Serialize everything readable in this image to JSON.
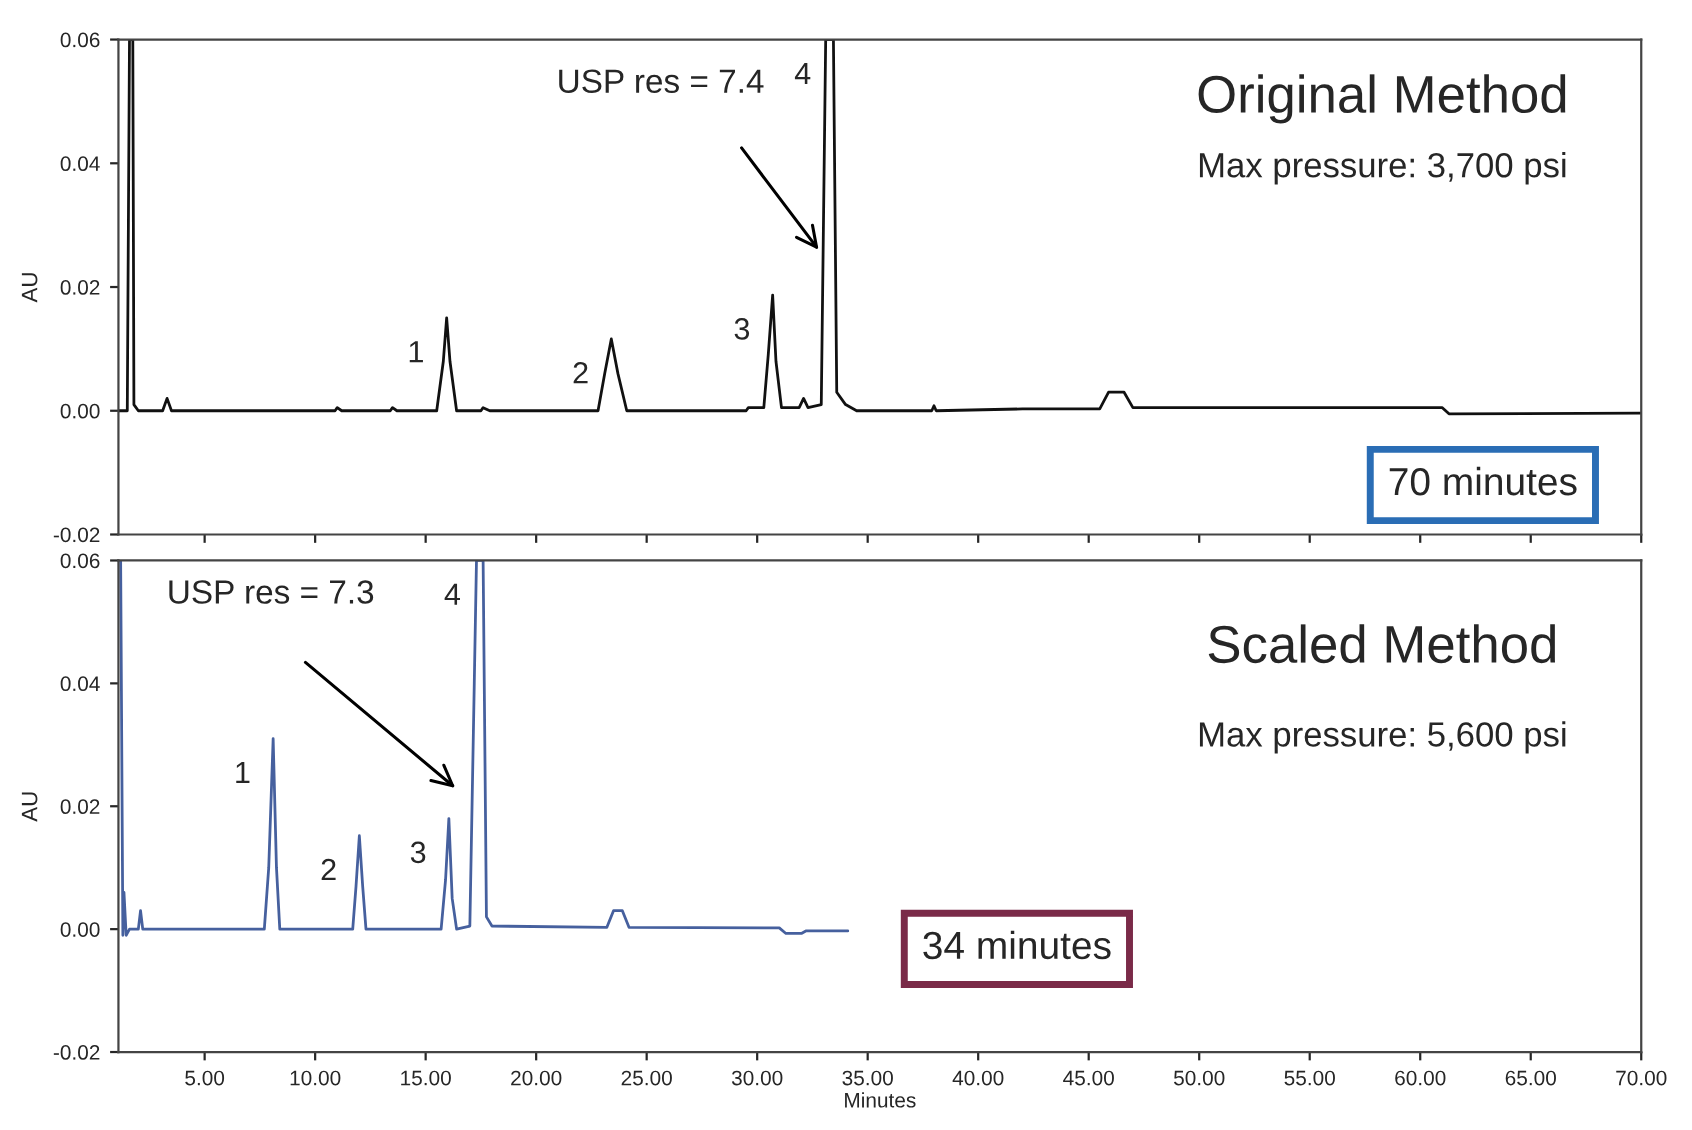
{
  "chart_data": [
    {
      "type": "line",
      "title": "Original Method",
      "subtitle": "Max pressure: 3,700 psi",
      "ylabel": "AU",
      "tick_labels": "y",
      "grid": false,
      "marker": "none",
      "line_style": "solid",
      "xlim": [
        1.1,
        70
      ],
      "ylim": [
        -0.02,
        0.06
      ],
      "xticks": [
        {
          "value": 5,
          "label": null
        },
        {
          "value": 10,
          "label": null
        },
        {
          "value": 15,
          "label": null
        },
        {
          "value": 20,
          "label": null
        },
        {
          "value": 25,
          "label": null
        },
        {
          "value": 30,
          "label": null
        },
        {
          "value": 35,
          "label": null
        },
        {
          "value": 40,
          "label": null
        },
        {
          "value": 45,
          "label": null
        },
        {
          "value": 50,
          "label": null
        },
        {
          "value": 55,
          "label": null
        },
        {
          "value": 60,
          "label": null
        },
        {
          "value": 65,
          "label": null
        },
        {
          "value": 70,
          "label": null
        }
      ],
      "yticks": [
        {
          "value": -0.02,
          "label": "-0.02"
        },
        {
          "value": 0,
          "label": "0.00"
        },
        {
          "value": 0.02,
          "label": "0.02"
        },
        {
          "value": 0.04,
          "label": "0.04"
        },
        {
          "value": 0.06,
          "label": "0.06"
        }
      ],
      "series": [
        {
          "color": "#111111",
          "x": [
            1.1,
            1.5,
            1.6,
            1.75,
            1.8,
            2.0,
            3.1,
            3.3,
            3.5,
            10.9,
            11.0,
            11.2,
            13.4,
            13.5,
            13.7,
            15.5,
            15.8,
            15.95,
            16.1,
            16.4,
            17.5,
            17.6,
            17.9,
            22.8,
            23.1,
            23.4,
            23.7,
            24.1,
            29.5,
            29.6,
            30.3,
            30.5,
            30.7,
            30.85,
            31.1,
            31.9,
            32.1,
            32.3,
            32.9,
            33.1,
            33.45,
            33.6,
            34.0,
            34.5,
            37.9,
            38.0,
            38.1,
            42.0,
            44.0,
            45.5,
            45.9,
            46.6,
            47.0,
            52.0,
            56.0,
            61.0,
            61.3,
            70.0
          ],
          "values": [
            0.0,
            0.0,
            0.06,
            0.06,
            0.001,
            0.0,
            0.0,
            0.002,
            0.0,
            0.0,
            0.0005,
            0.0,
            0.0,
            0.0005,
            0.0,
            0.0,
            0.008,
            0.015,
            0.008,
            0.0,
            0.0,
            0.0005,
            0.0,
            0.0,
            0.006,
            0.0116,
            0.006,
            0.0,
            0.0,
            0.0005,
            0.0005,
            0.009,
            0.0187,
            0.008,
            0.0005,
            0.0005,
            0.002,
            0.0005,
            0.001,
            0.06,
            0.06,
            0.003,
            0.001,
            0.0,
            0.0,
            0.0008,
            0.0,
            0.0003,
            0.0003,
            0.0003,
            0.003,
            0.003,
            0.0005,
            0.0005,
            0.0005,
            0.0005,
            -0.0005,
            -0.0004
          ]
        }
      ],
      "annotations": [
        {
          "text": "1",
          "x": 15.95,
          "y": 0.015
        },
        {
          "text": "2",
          "x": 23.4,
          "y": 0.0116
        },
        {
          "text": "3",
          "x": 30.7,
          "y": 0.0187
        },
        {
          "text": "4",
          "x": 33.45,
          "y": 0.06
        },
        "USP res = 7.4",
        "70 minutes"
      ]
    },
    {
      "type": "line",
      "title": "Scaled Method",
      "subtitle": "Max pressure: 5,600 psi",
      "xlabel": "Minutes",
      "ylabel": "AU",
      "grid": false,
      "marker": "none",
      "line_style": "solid",
      "xlim": [
        1.1,
        70
      ],
      "ylim": [
        -0.02,
        0.06
      ],
      "xticks": [
        {
          "value": 5,
          "label": "5.00"
        },
        {
          "value": 10,
          "label": "10.00"
        },
        {
          "value": 15,
          "label": "15.00"
        },
        {
          "value": 20,
          "label": "20.00"
        },
        {
          "value": 25,
          "label": "25.00"
        },
        {
          "value": 30,
          "label": "30.00"
        },
        {
          "value": 35,
          "label": "35.00"
        },
        {
          "value": 40,
          "label": "40.00"
        },
        {
          "value": 45,
          "label": "45.00"
        },
        {
          "value": 50,
          "label": "50.00"
        },
        {
          "value": 55,
          "label": "55.00"
        },
        {
          "value": 60,
          "label": "60.00"
        },
        {
          "value": 65,
          "label": "65.00"
        },
        {
          "value": 70,
          "label": "70.00"
        }
      ],
      "yticks": [
        {
          "value": -0.02,
          "label": "-0.02"
        },
        {
          "value": 0,
          "label": "0.00"
        },
        {
          "value": 0.02,
          "label": "0.02"
        },
        {
          "value": 0.04,
          "label": "0.04"
        },
        {
          "value": 0.06,
          "label": "0.06"
        }
      ],
      "series": [
        {
          "color": "#46609e",
          "x": [
            1.1,
            1.2,
            1.3,
            1.35,
            1.45,
            1.6,
            2.0,
            2.1,
            2.2,
            7.7,
            7.9,
            8.1,
            8.25,
            8.4,
            11.7,
            11.85,
            12.0,
            12.15,
            12.3,
            15.7,
            15.9,
            16.05,
            16.2,
            16.4,
            17.0,
            17.2,
            17.3,
            17.6,
            17.75,
            18.0,
            23.2,
            23.5,
            23.9,
            24.2,
            31.0,
            31.3,
            32.0,
            32.2,
            34.1
          ],
          "values": [
            0.06,
            0.06,
            -0.001,
            0.006,
            -0.001,
            0.0,
            0.0,
            0.003,
            0.0,
            0.0,
            0.01,
            0.031,
            0.01,
            0.0,
            0.0,
            0.007,
            0.0152,
            0.007,
            0.0,
            0.0,
            0.008,
            0.018,
            0.005,
            0.0,
            0.0005,
            0.04,
            0.06,
            0.06,
            0.002,
            0.0005,
            0.0003,
            0.003,
            0.003,
            0.0003,
            0.0002,
            -0.0007,
            -0.0007,
            -0.0003,
            -0.0003
          ]
        }
      ],
      "annotations": [
        {
          "text": "1",
          "x": 8.1,
          "y": 0.031
        },
        {
          "text": "2",
          "x": 12.0,
          "y": 0.0152
        },
        {
          "text": "3",
          "x": 16.05,
          "y": 0.018
        },
        {
          "text": "4",
          "x": 17.6,
          "y": 0.06
        },
        "USP res = 7.3",
        "34 minutes"
      ]
    }
  ]
}
